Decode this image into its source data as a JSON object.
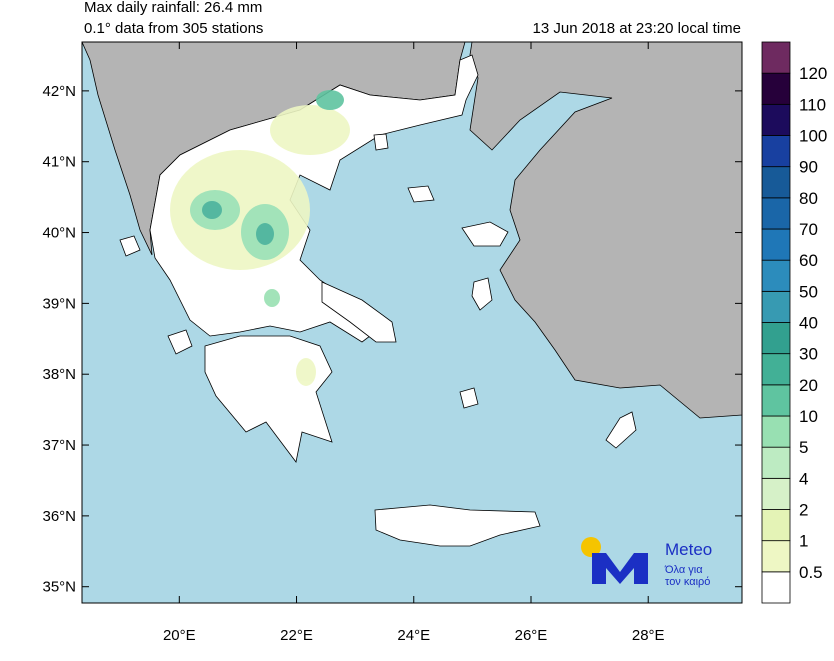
{
  "header": {
    "title": "Max daily rainfall: 26.4 mm",
    "subtitle": "0.1° data from 305 stations",
    "timestamp": "13 Jun 2018 at 23:20 local time"
  },
  "map": {
    "xlim": [
      18.34,
      29.6
    ],
    "ylim": [
      34.77,
      42.69
    ],
    "xticks": [
      {
        "value": 20,
        "label": "20°E"
      },
      {
        "value": 22,
        "label": "22°E"
      },
      {
        "value": 24,
        "label": "24°E"
      },
      {
        "value": 26,
        "label": "26°E"
      },
      {
        "value": 28,
        "label": "28°E"
      }
    ],
    "yticks": [
      {
        "value": 35,
        "label": "35°N"
      },
      {
        "value": 36,
        "label": "36°N"
      },
      {
        "value": 37,
        "label": "37°N"
      },
      {
        "value": 38,
        "label": "38°N"
      },
      {
        "value": 39,
        "label": "39°N"
      },
      {
        "value": 40,
        "label": "40°N"
      },
      {
        "value": 41,
        "label": "41°N"
      },
      {
        "value": 42,
        "label": "42°N"
      }
    ]
  },
  "colorbar": {
    "levels": [
      0.5,
      1,
      2,
      4,
      5,
      10,
      20,
      30,
      40,
      50,
      60,
      70,
      80,
      90,
      100,
      110,
      120
    ],
    "colors": [
      "#ffffff",
      "#eef7c4",
      "#e4f3b6",
      "#d6f1c8",
      "#bdebc2",
      "#98e0b2",
      "#5fc4a0",
      "#42b096",
      "#32a08f",
      "#379ab2",
      "#2c8cbc",
      "#1f77b7",
      "#1a66a8",
      "#175a98",
      "#1840a0",
      "#1c0b5c",
      "#26003a",
      "#6e2a60"
    ]
  },
  "logo": {
    "brand": "Meteo",
    "slogan_1": "Όλα για",
    "slogan_2": "τον καιρό"
  }
}
